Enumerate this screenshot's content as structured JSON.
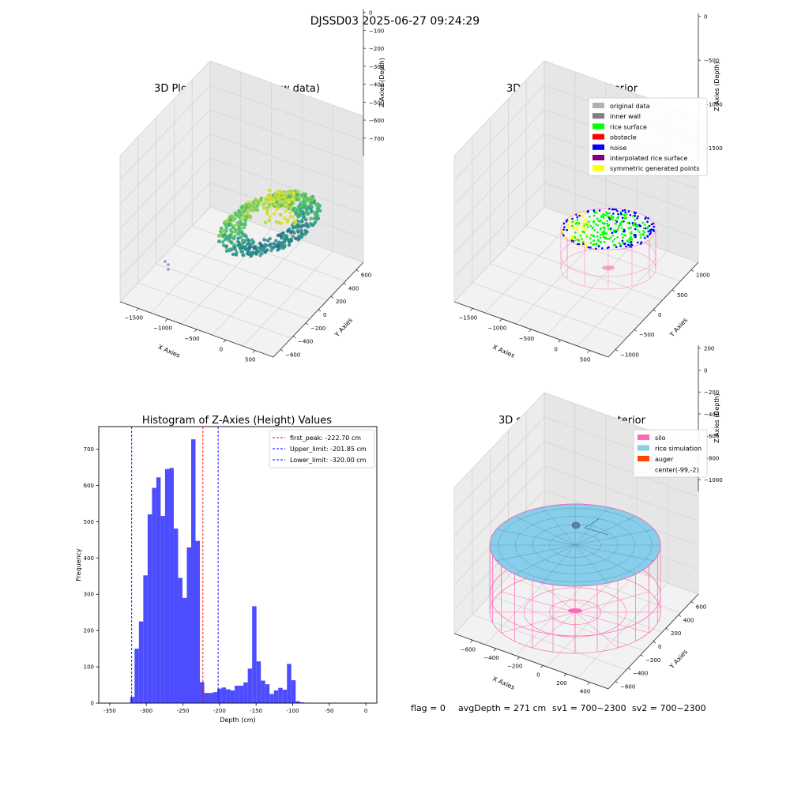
{
  "figure": {
    "title": "DJSSD03 2025-06-27 09:24:29",
    "footer": {
      "flag": "flag = 0",
      "avg_depth": "avgDepth = 271 cm",
      "sv1": "sv1 = 700~2300",
      "sv2": "sv2 = 700~2300"
    }
  },
  "chart_data": [
    {
      "type": "scatter3d",
      "title": "3D Plot of Silo Interior(row data)",
      "xlabel": "X Axies",
      "ylabel": "Y Axies",
      "zlabel": "Z Axies (Depth)",
      "x_ticks": [
        "−1500",
        "−1000",
        "−500",
        "0",
        "500"
      ],
      "y_ticks": [
        "−600",
        "−400",
        "−200",
        "0",
        "200",
        "400",
        "600"
      ],
      "z_ticks": [
        "0",
        "−100",
        "−200",
        "−300",
        "−400",
        "−500",
        "−600",
        "−700"
      ],
      "colormap": "viridis",
      "grid": true
    },
    {
      "type": "scatter3d",
      "title": "3D classify of Silo Interior",
      "xlabel": "X Axies",
      "ylabel": "Y Axies",
      "zlabel": "Z Axies (Depth)",
      "x_ticks": [
        "−1500",
        "−1000",
        "−500",
        "0",
        "500"
      ],
      "y_ticks": [
        "−1000",
        "−500",
        "0",
        "500",
        "1000"
      ],
      "z_ticks": [
        "0",
        "−500",
        "−1000",
        "−1500"
      ],
      "legend_position": "top-right",
      "legend": [
        {
          "label": "original data",
          "color": "#b0b0b0"
        },
        {
          "label": "inner wall",
          "color": "#808080"
        },
        {
          "label": "rice surface",
          "color": "#00ff00"
        },
        {
          "label": "obstacle",
          "color": "#ff0000"
        },
        {
          "label": "noise",
          "color": "#0000ff"
        },
        {
          "label": "interpolated rice surface",
          "color": "#800080"
        },
        {
          "label": "symmetric generated points",
          "color": "#ffff00"
        }
      ],
      "grid": true
    },
    {
      "type": "bar",
      "title": "Histogram of Z-Axies (Height) Values",
      "xlabel": "Depth (cm)",
      "ylabel": "Frequency",
      "xlim": [
        -365,
        15
      ],
      "ylim": [
        0,
        762
      ],
      "x_ticks": [
        -350,
        -300,
        -250,
        -200,
        -150,
        -100,
        -50,
        0
      ],
      "y_ticks": [
        0,
        100,
        200,
        300,
        400,
        500,
        600,
        700
      ],
      "bar_color": "#4d4dff",
      "bin_start": -322,
      "bin_width": 5.95,
      "values": [
        17,
        150,
        225,
        352,
        520,
        593,
        622,
        516,
        645,
        648,
        481,
        345,
        290,
        429,
        727,
        447,
        58,
        28,
        28,
        30,
        40,
        43,
        38,
        35,
        48,
        48,
        57,
        95,
        267,
        115,
        62,
        52,
        25,
        35,
        42,
        37,
        108,
        63,
        5,
        2
      ],
      "vlines": [
        {
          "label": "first_peak: -222.70 cm",
          "x": -222.7,
          "color": "#ff0000"
        },
        {
          "label": "Upper_limit: -201.85 cm",
          "x": -201.85,
          "color": "#0000ff"
        },
        {
          "label": "Lower_limit: -320.00 cm",
          "x": -320.0,
          "color": "#0000ff"
        }
      ],
      "legend_position": "top-right",
      "grid": false
    },
    {
      "type": "surface3d",
      "title": "3D simulation of Silo Interior",
      "xlabel": "X Axies",
      "ylabel": "Y Axies",
      "zlabel": "Z Axies (Depth)",
      "x_ticks": [
        "−600",
        "−400",
        "−200",
        "0",
        "200",
        "400"
      ],
      "y_ticks": [
        "−600",
        "−400",
        "−200",
        "0",
        "200",
        "400",
        "600"
      ],
      "z_ticks": [
        "200",
        "0",
        "−200",
        "−400",
        "−600",
        "−800",
        "−1000"
      ],
      "legend_position": "top-right",
      "legend": [
        {
          "label": "silo",
          "color": "#ff69b4"
        },
        {
          "label": "rice simulation",
          "color": "#87ceeb"
        },
        {
          "label": "auger",
          "color": "#ff4500"
        },
        {
          "label": "center(-99,-2)",
          "color": ""
        }
      ],
      "grid": true
    }
  ]
}
